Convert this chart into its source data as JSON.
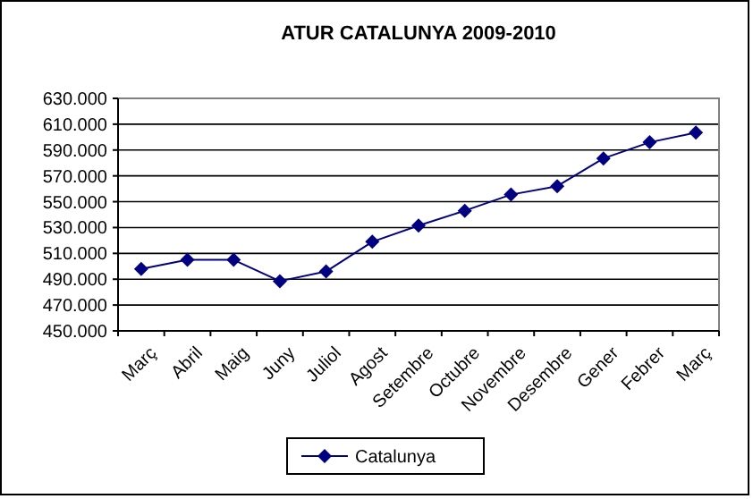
{
  "chart_data": {
    "type": "line",
    "title": "ATUR CATALUNYA 2009-2010",
    "categories": [
      "Març",
      "Abril",
      "Maig",
      "Juny",
      "Juliol",
      "Agost",
      "Setembre",
      "Octubre",
      "Novembre",
      "Desembre",
      "Gener",
      "Febrer",
      "Març"
    ],
    "series": [
      {
        "name": "Catalunya",
        "color": "#000080",
        "values": [
          498000,
          505000,
          505000,
          488500,
          496000,
          519000,
          531500,
          543000,
          555500,
          562000,
          583500,
          596000,
          603500
        ]
      }
    ],
    "ylim": [
      450000,
      630000
    ],
    "yticks": [
      {
        "value": 450000,
        "label": "450.000"
      },
      {
        "value": 470000,
        "label": "470.000"
      },
      {
        "value": 490000,
        "label": "490.000"
      },
      {
        "value": 510000,
        "label": "510.000"
      },
      {
        "value": 530000,
        "label": "530.000"
      },
      {
        "value": 550000,
        "label": "550.000"
      },
      {
        "value": 570000,
        "label": "570.000"
      },
      {
        "value": 590000,
        "label": "590.000"
      },
      {
        "value": 610000,
        "label": "610.000"
      },
      {
        "value": 630000,
        "label": "630.000"
      }
    ],
    "grid": "y",
    "legend": "bottom",
    "marker": "diamond",
    "line_style": "solid"
  }
}
